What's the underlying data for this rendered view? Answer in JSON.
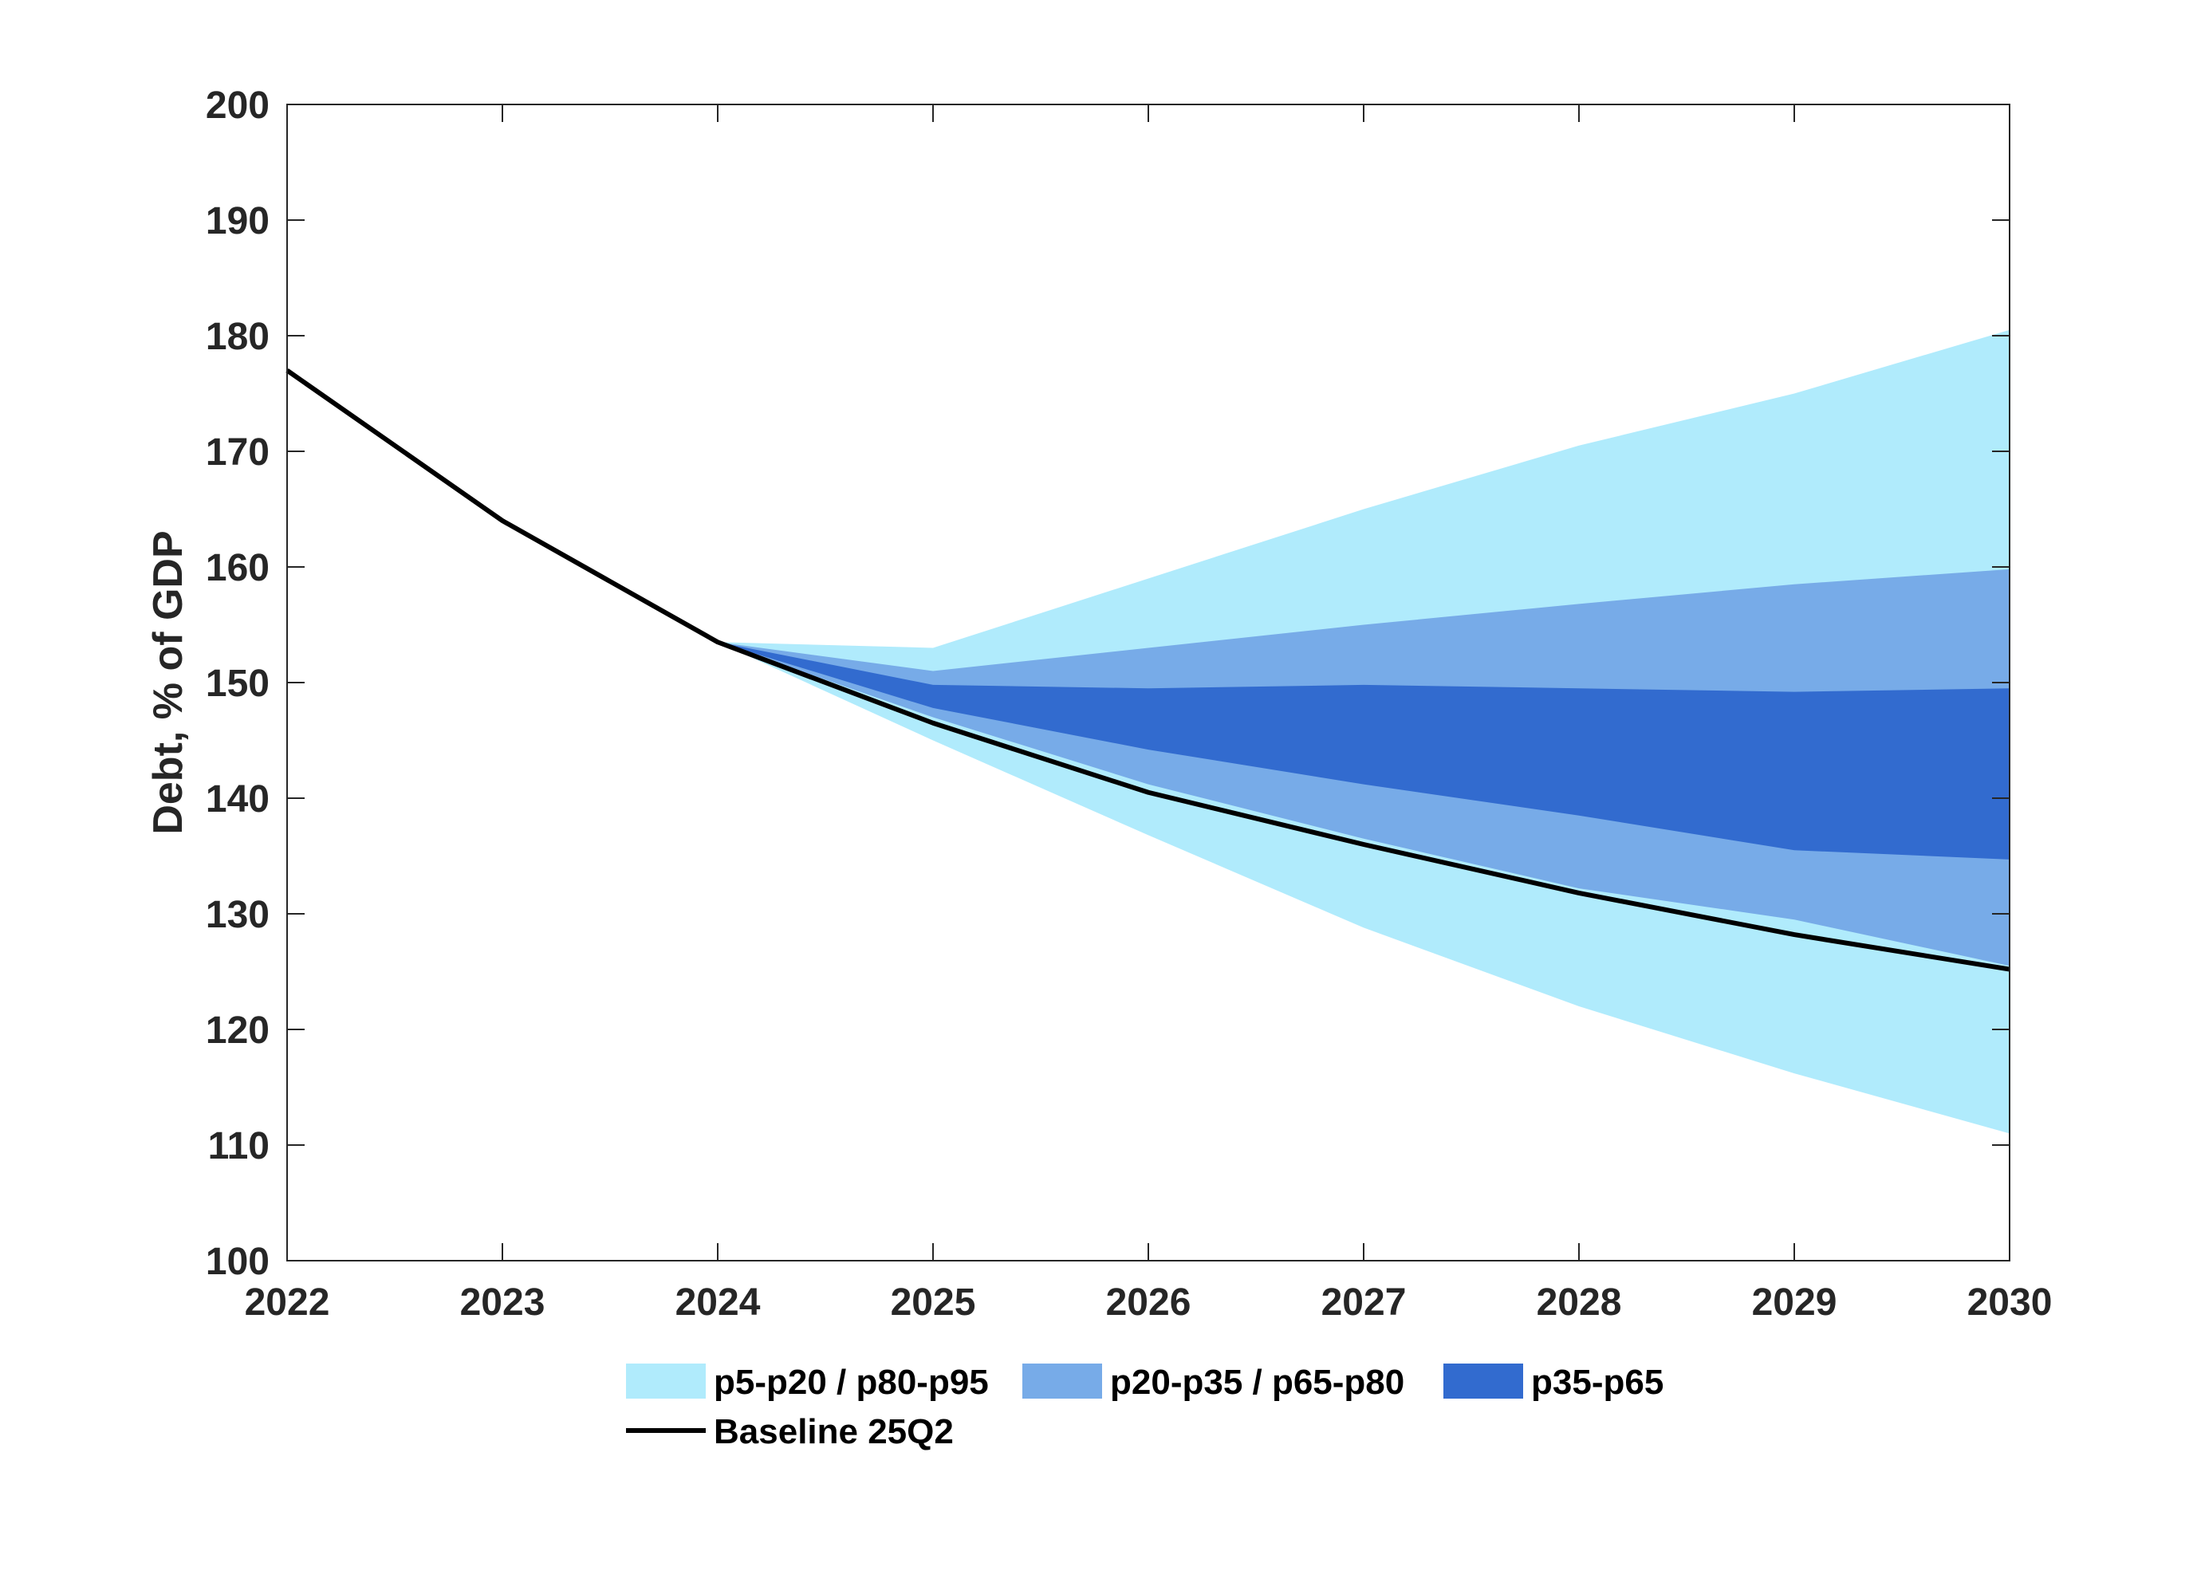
{
  "chart_data": {
    "type": "area",
    "x": [
      2022,
      2023,
      2024,
      2025,
      2026,
      2027,
      2028,
      2029,
      2030
    ],
    "xlim": [
      2022,
      2030
    ],
    "ylim": [
      100,
      200
    ],
    "xticks": [
      "2022",
      "2023",
      "2024",
      "2025",
      "2026",
      "2027",
      "2028",
      "2029",
      "2030"
    ],
    "yticks": [
      "100",
      "110",
      "120",
      "130",
      "140",
      "150",
      "160",
      "170",
      "180",
      "190",
      "200"
    ],
    "ylabel": "Debt, % of GDP",
    "xlabel": "",
    "grid": false,
    "legend_position": "bottom",
    "fan_x": [
      2024,
      2025,
      2026,
      2027,
      2028,
      2029,
      2030
    ],
    "bands": [
      {
        "name": "p5-p20 / p80-p95",
        "color": "#B0EBFC",
        "upper": [
          153.5,
          153.0,
          159.0,
          165.0,
          170.5,
          175.0,
          180.5
        ],
        "lower": [
          153.5,
          145.0,
          136.8,
          128.8,
          122.0,
          116.2,
          111.0
        ]
      },
      {
        "name": "p20-p35 / p65-p80",
        "color": "#77ABE8",
        "upper": [
          153.5,
          151.0,
          153.0,
          155.0,
          156.8,
          158.5,
          159.8
        ],
        "lower": [
          153.5,
          147.0,
          141.2,
          136.5,
          132.2,
          129.5,
          125.5
        ]
      },
      {
        "name": "p35-p65",
        "color": "#326BCF",
        "upper": [
          153.5,
          149.8,
          149.5,
          149.8,
          149.5,
          149.2,
          149.5
        ],
        "lower": [
          153.5,
          147.8,
          144.2,
          141.2,
          138.5,
          135.5,
          134.7
        ]
      }
    ],
    "series": [
      {
        "name": "Baseline 25Q2",
        "color": "#000000",
        "x": [
          2022,
          2023,
          2024,
          2025,
          2026,
          2027,
          2028,
          2029,
          2030
        ],
        "values": [
          177.0,
          164.0,
          153.5,
          146.5,
          140.5,
          136.0,
          131.8,
          128.2,
          125.2
        ]
      }
    ]
  }
}
